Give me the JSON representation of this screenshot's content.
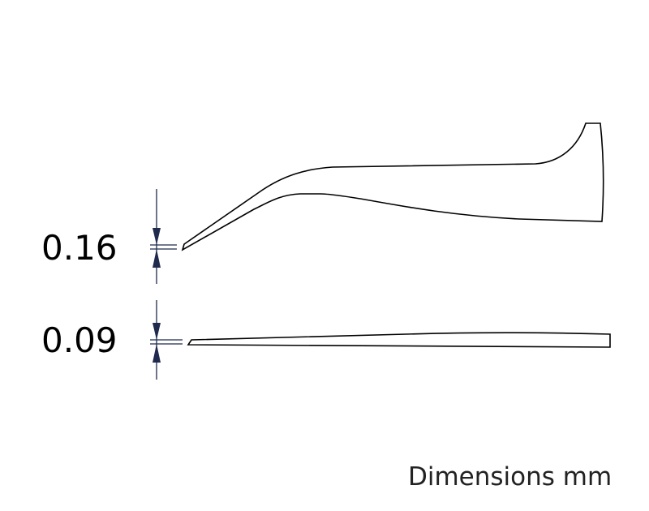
{
  "dimensions": {
    "top_thickness": "0.16",
    "bottom_thickness": "0.09",
    "units_label": "Dimensions mm"
  },
  "colors": {
    "outline": "#000000",
    "dimension_arrow": "#1f2a4d"
  }
}
